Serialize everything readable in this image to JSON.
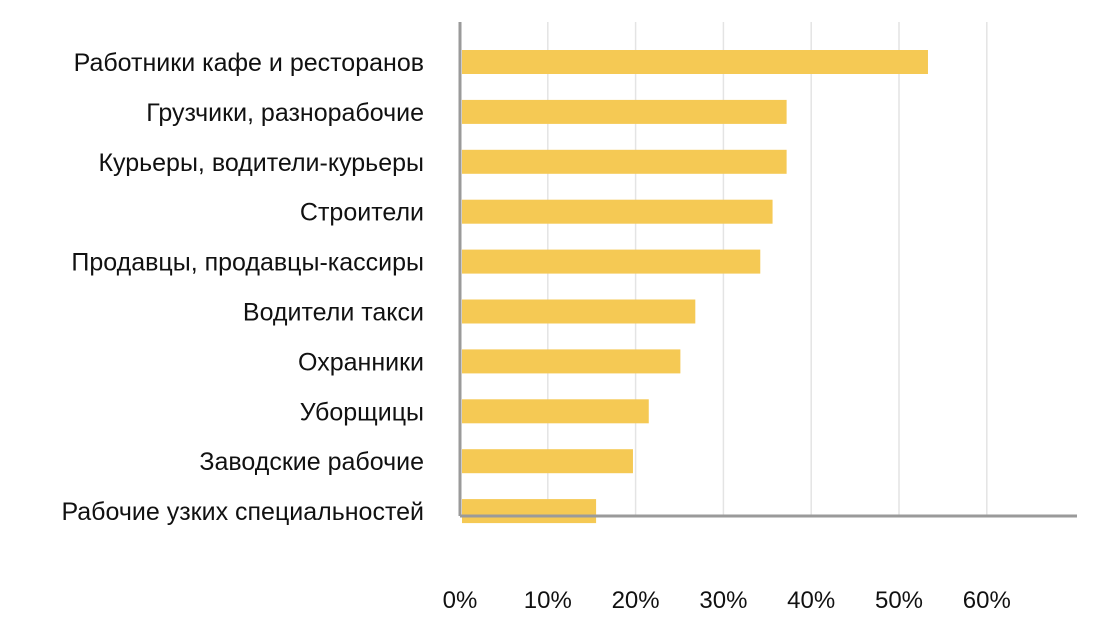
{
  "chart_data": {
    "type": "bar",
    "orientation": "horizontal",
    "categories": [
      "Работники кафе и ресторанов",
      "Грузчики, разнорабочие",
      "Курьеры, водители-курьеры",
      "Строители",
      "Продавцы, продавцы-кассиры",
      "Водители такси",
      "Охранники",
      "Уборщицы",
      "Заводские рабочие",
      "Рабочие узких специальностей"
    ],
    "values": [
      53.3,
      37.2,
      37.2,
      35.6,
      34.2,
      26.8,
      25.1,
      21.5,
      19.7,
      15.5
    ],
    "xticks": [
      "0%",
      "10%",
      "20%",
      "30%",
      "40%",
      "50%",
      "60%"
    ],
    "xlim": [
      0,
      67
    ],
    "grid": "vertical",
    "bar_color": "#f5c954",
    "title": "",
    "xlabel": "",
    "ylabel": ""
  }
}
